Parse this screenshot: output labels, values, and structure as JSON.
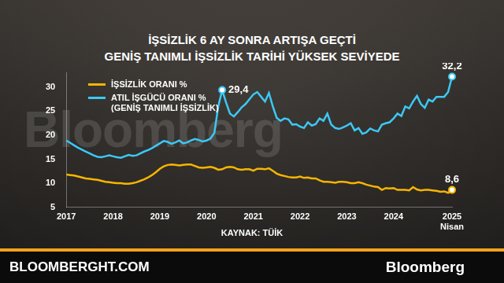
{
  "chart_data": {
    "type": "line",
    "title": "İŞSİZLİK 6 AY SONRA ARTIŞA GEÇTİ",
    "subtitle": "GENİŞ TANIMLI İŞSİZLİK TARİHİ YÜKSEK SEVİYEDE",
    "source": "KAYNAK: TÜİK",
    "categories": [
      "2017",
      null,
      null,
      null,
      null,
      null,
      null,
      null,
      null,
      null,
      null,
      null,
      "2018",
      null,
      null,
      null,
      null,
      null,
      null,
      null,
      null,
      null,
      null,
      null,
      "2019",
      null,
      null,
      null,
      null,
      null,
      null,
      null,
      null,
      null,
      null,
      null,
      "2020",
      null,
      null,
      null,
      null,
      null,
      null,
      null,
      null,
      null,
      null,
      null,
      "2021",
      null,
      null,
      null,
      null,
      null,
      null,
      null,
      null,
      null,
      null,
      null,
      "2022",
      null,
      null,
      null,
      null,
      null,
      null,
      null,
      null,
      null,
      null,
      null,
      "2023",
      null,
      null,
      null,
      null,
      null,
      null,
      null,
      null,
      null,
      null,
      null,
      "2024",
      null,
      null,
      null,
      null,
      null,
      null,
      null,
      null,
      null,
      null,
      null,
      null,
      null,
      null,
      "2025 Nisan"
    ],
    "series": [
      {
        "name": "İŞSİZLİK ORANI %",
        "color": "#f7b500",
        "values": [
          11.8,
          11.7,
          11.6,
          11.4,
          11.2,
          11.0,
          10.9,
          10.8,
          10.7,
          10.5,
          10.3,
          10.2,
          10.1,
          10.0,
          10.0,
          9.9,
          9.9,
          10.0,
          10.2,
          10.5,
          10.8,
          11.2,
          11.7,
          12.3,
          13.0,
          13.5,
          13.8,
          13.9,
          13.8,
          13.7,
          13.8,
          13.9,
          13.9,
          13.6,
          13.3,
          13.2,
          13.3,
          13.4,
          13.2,
          12.8,
          12.9,
          13.3,
          13.4,
          13.3,
          12.9,
          12.8,
          12.9,
          12.9,
          12.6,
          13.0,
          13.0,
          12.9,
          13.1,
          12.6,
          12.0,
          11.7,
          11.5,
          11.3,
          11.2,
          11.2,
          11.4,
          11.1,
          11.2,
          11.0,
          11.0,
          10.6,
          10.3,
          10.3,
          10.2,
          10.1,
          10.3,
          10.3,
          10.2,
          10.0,
          10.0,
          10.2,
          10.0,
          9.7,
          9.5,
          9.3,
          9.2,
          8.6,
          9.0,
          8.9,
          9.0,
          8.6,
          8.6,
          8.6,
          8.5,
          9.2,
          8.7,
          8.5,
          8.6,
          8.6,
          8.5,
          8.4,
          8.2,
          8.3,
          8.0,
          8.6
        ]
      },
      {
        "name": "ATIL İŞGÜCÜ ORANI % (GENİŞ TANIMLI İŞSİZLİK)",
        "color": "#3cc8f5",
        "values": [
          18.9,
          18.4,
          17.9,
          17.4,
          17.0,
          16.6,
          16.2,
          15.8,
          15.5,
          15.4,
          15.6,
          15.8,
          15.6,
          15.4,
          15.3,
          15.6,
          15.9,
          15.7,
          15.8,
          16.2,
          16.6,
          16.9,
          17.3,
          17.8,
          18.3,
          18.8,
          18.6,
          18.2,
          18.5,
          18.9,
          18.3,
          18.5,
          18.9,
          19.2,
          19.0,
          18.7,
          18.9,
          19.3,
          20.5,
          26.0,
          29.4,
          26.8,
          24.5,
          23.9,
          24.8,
          25.8,
          26.5,
          27.5,
          28.5,
          29.0,
          28.0,
          27.0,
          28.8,
          26.0,
          23.6,
          23.0,
          23.5,
          23.3,
          22.2,
          22.3,
          21.8,
          21.5,
          22.7,
          22.0,
          22.3,
          23.5,
          23.0,
          24.5,
          22.2,
          21.5,
          21.3,
          21.6,
          22.0,
          22.5,
          21.0,
          21.5,
          20.3,
          20.6,
          21.4,
          21.0,
          20.8,
          22.2,
          22.5,
          22.7,
          23.5,
          24.5,
          24.0,
          26.0,
          25.6,
          27.0,
          28.2,
          26.5,
          25.7,
          27.4,
          27.0,
          28.0,
          28.0,
          28.0,
          29.0,
          32.2
        ]
      }
    ],
    "ylim": [
      5,
      33
    ],
    "yticks": [
      5,
      10,
      15,
      20,
      25,
      30
    ],
    "grid": false,
    "legend": "upper left",
    "annotations": [
      {
        "text": "29,4",
        "series": "ATIL İŞGÜCÜ ORANI % (GENİŞ TANIMLI İŞSİZLİK)",
        "index": 40
      },
      {
        "text": "32,2",
        "series": "ATIL İŞGÜCÜ ORANI % (GENİŞ TANIMLI İŞSİZLİK)",
        "index": 99
      },
      {
        "text": "8,6",
        "series": "İŞSİZLİK ORANI %",
        "index": 99
      }
    ]
  },
  "watermark": "Bloomberg",
  "footer": {
    "site": "BLOOMBERGHT.COM",
    "brand": "Bloomberg"
  }
}
